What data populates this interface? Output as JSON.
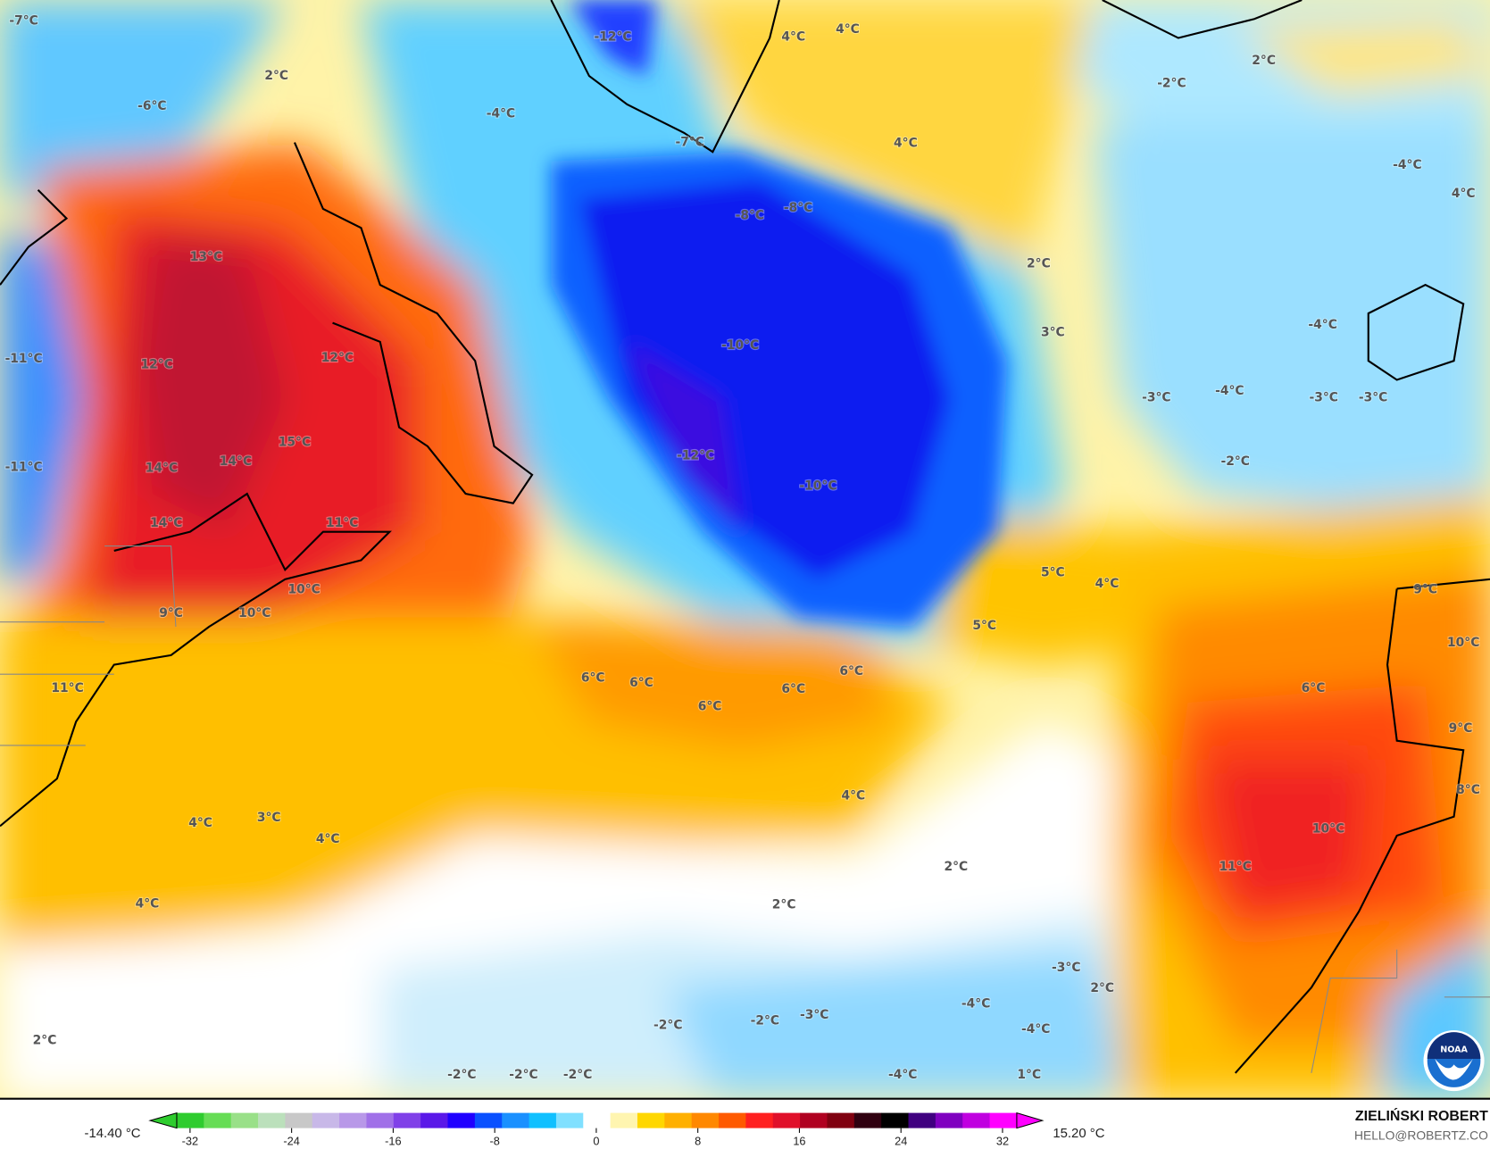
{
  "map": {
    "labels": [
      "-7°C",
      "-12°C",
      "4°C",
      "4°C",
      "2°C",
      "2°C",
      "-6°C",
      "-4°C",
      "-2°C",
      "4°C",
      "-7°C",
      "-4°C",
      "4°C",
      "-8°C",
      "-8°C",
      "13°C",
      "2°C",
      "3°C",
      "12°C",
      "-4°C",
      "-10°C",
      "-11°C",
      "12°C",
      "-4°C",
      "-3°C",
      "-3°C",
      "-3°C",
      "15°C",
      "14°C",
      "14°C",
      "-11°C",
      "-12°C",
      "-2°C",
      "-10°C",
      "14°C",
      "11°C",
      "5°C",
      "4°C",
      "9°C",
      "10°C",
      "10°C",
      "9°C",
      "5°C",
      "10°C",
      "6°C",
      "6°C",
      "6°C",
      "6°C",
      "6°C",
      "11°C",
      "6°C",
      "9°C",
      "8°C",
      "4°C",
      "4°C",
      "3°C",
      "4°C",
      "10°C",
      "2°C",
      "11°C",
      "4°C",
      "2°C",
      "-3°C",
      "2°C",
      "-4°C",
      "-2°C",
      "-3°C",
      "-4°C",
      "-2°C",
      "2°C",
      "-2°C",
      "-2°C",
      "-2°C",
      "-4°C",
      "1°C"
    ],
    "logo": "NOAA"
  },
  "colorbar": {
    "min_label": "-14.40 °C",
    "max_label": "15.20 °C",
    "ticks": [
      "-32",
      "-24",
      "-16",
      "-8",
      "0",
      "8",
      "16",
      "24",
      "32"
    ],
    "colors": [
      "#2ecc2e",
      "#66dd55",
      "#99e088",
      "#bbe0bb",
      "#c8c8c8",
      "#c8b8e8",
      "#b898e8",
      "#a070e8",
      "#8040e8",
      "#5a18e8",
      "#2000ff",
      "#0a50ff",
      "#1a90ff",
      "#10c0ff",
      "#80e0ff",
      "#ffffff",
      "#fff5b0",
      "#ffd700",
      "#ffb000",
      "#ff8800",
      "#ff5a00",
      "#ff2020",
      "#e0102a",
      "#b00020",
      "#800010",
      "#300010",
      "#000000",
      "#400080",
      "#8000c0",
      "#c000e0",
      "#ff00ff"
    ]
  },
  "credit": {
    "name": "ZIELIŃSKI ROBERT",
    "email": "HELLO@ROBERTZ.CO"
  }
}
